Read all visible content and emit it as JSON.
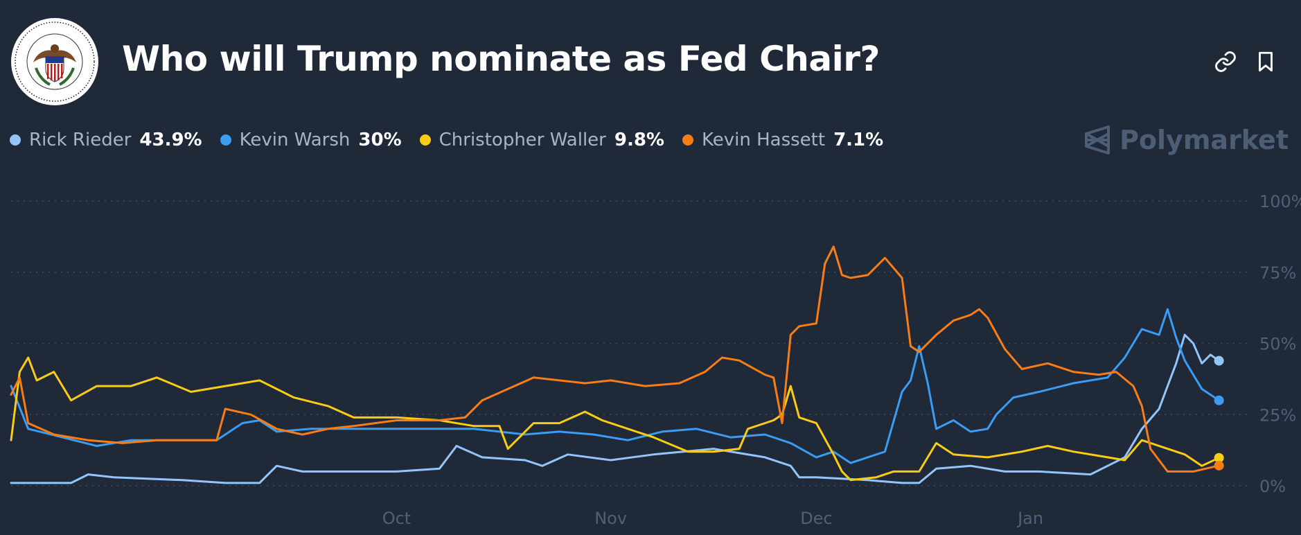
{
  "header": {
    "title": "Who will Trump nominate as Fed Chair?",
    "seal_text": "BOARD OF GOVERNORS OF THE FEDERAL RESERVE SYSTEM",
    "link_icon": "link-icon",
    "bookmark_icon": "bookmark-icon"
  },
  "legend": [
    {
      "name": "Rick Rieder",
      "value": "43.9%",
      "color": "#93c5fd"
    },
    {
      "name": "Kevin Warsh",
      "value": "30%",
      "color": "#3b9cf3"
    },
    {
      "name": "Christopher Waller",
      "value": "9.8%",
      "color": "#facc15"
    },
    {
      "name": "Kevin Hassett",
      "value": "7.1%",
      "color": "#f97d16"
    }
  ],
  "brand": {
    "name": "Polymarket",
    "icon": "polymarket-logo-icon"
  },
  "chart_data": {
    "type": "line",
    "title": "Who will Trump nominate as Fed Chair?",
    "x_domain": [
      0,
      142
    ],
    "ylim": [
      0,
      100
    ],
    "y_ticks": [
      {
        "value": 100,
        "label": "100%"
      },
      {
        "value": 75,
        "label": "75%"
      },
      {
        "value": 50,
        "label": "50%"
      },
      {
        "value": 25,
        "label": "25%"
      },
      {
        "value": 0,
        "label": "0%"
      }
    ],
    "x_ticks": [
      {
        "value": 45,
        "label": "Oct"
      },
      {
        "value": 70,
        "label": "Nov"
      },
      {
        "value": 94,
        "label": "Dec"
      },
      {
        "value": 119,
        "label": "Jan"
      }
    ],
    "grid": true,
    "series": [
      {
        "name": "Rick Rieder",
        "color": "#93c5fd",
        "final": 43.9,
        "points": [
          [
            0,
            1
          ],
          [
            7,
            1
          ],
          [
            9,
            4
          ],
          [
            12,
            3
          ],
          [
            20,
            2
          ],
          [
            25,
            1
          ],
          [
            29,
            1
          ],
          [
            31,
            7
          ],
          [
            34,
            5
          ],
          [
            45,
            5
          ],
          [
            50,
            6
          ],
          [
            52,
            14
          ],
          [
            55,
            10
          ],
          [
            60,
            9
          ],
          [
            62,
            7
          ],
          [
            65,
            11
          ],
          [
            70,
            9
          ],
          [
            75,
            11
          ],
          [
            82,
            13
          ],
          [
            88,
            10
          ],
          [
            91,
            7
          ],
          [
            92,
            3
          ],
          [
            94,
            3
          ],
          [
            100,
            2
          ],
          [
            104,
            1
          ],
          [
            106,
            1
          ],
          [
            108,
            6
          ],
          [
            112,
            7
          ],
          [
            116,
            5
          ],
          [
            120,
            5
          ],
          [
            126,
            4
          ],
          [
            128,
            7
          ],
          [
            130,
            10
          ],
          [
            132,
            20
          ],
          [
            134,
            27
          ],
          [
            135,
            35
          ],
          [
            136,
            43
          ],
          [
            137,
            53
          ],
          [
            138,
            50
          ],
          [
            139,
            43
          ],
          [
            140,
            46
          ],
          [
            141,
            43.9
          ]
        ]
      },
      {
        "name": "Kevin Warsh",
        "color": "#3b9cf3",
        "final": 30,
        "points": [
          [
            0,
            35
          ],
          [
            2,
            20
          ],
          [
            6,
            17
          ],
          [
            10,
            14
          ],
          [
            14,
            16
          ],
          [
            18,
            16
          ],
          [
            24,
            16
          ],
          [
            27,
            22
          ],
          [
            29,
            23
          ],
          [
            31,
            19
          ],
          [
            35,
            20
          ],
          [
            45,
            20
          ],
          [
            54,
            20
          ],
          [
            57,
            19
          ],
          [
            60,
            18
          ],
          [
            64,
            19
          ],
          [
            68,
            18
          ],
          [
            72,
            16
          ],
          [
            76,
            19
          ],
          [
            80,
            20
          ],
          [
            84,
            17
          ],
          [
            88,
            18
          ],
          [
            91,
            15
          ],
          [
            94,
            10
          ],
          [
            96,
            12
          ],
          [
            98,
            8
          ],
          [
            102,
            12
          ],
          [
            104,
            33
          ],
          [
            105,
            37
          ],
          [
            106,
            49
          ],
          [
            107,
            36
          ],
          [
            108,
            20
          ],
          [
            110,
            23
          ],
          [
            112,
            19
          ],
          [
            114,
            20
          ],
          [
            115,
            25
          ],
          [
            117,
            31
          ],
          [
            120,
            33
          ],
          [
            124,
            36
          ],
          [
            128,
            38
          ],
          [
            130,
            45
          ],
          [
            132,
            55
          ],
          [
            134,
            53
          ],
          [
            135,
            62
          ],
          [
            136,
            52
          ],
          [
            137,
            44
          ],
          [
            139,
            34
          ],
          [
            141,
            30
          ]
        ]
      },
      {
        "name": "Christopher Waller",
        "color": "#facc15",
        "final": 9.8,
        "points": [
          [
            0,
            16
          ],
          [
            1,
            40
          ],
          [
            2,
            45
          ],
          [
            3,
            37
          ],
          [
            5,
            40
          ],
          [
            7,
            30
          ],
          [
            10,
            35
          ],
          [
            14,
            35
          ],
          [
            17,
            38
          ],
          [
            21,
            33
          ],
          [
            25,
            35
          ],
          [
            29,
            37
          ],
          [
            33,
            31
          ],
          [
            37,
            28
          ],
          [
            40,
            24
          ],
          [
            45,
            24
          ],
          [
            50,
            23
          ],
          [
            54,
            21
          ],
          [
            57,
            21
          ],
          [
            58,
            13
          ],
          [
            59,
            16
          ],
          [
            61,
            22
          ],
          [
            64,
            22
          ],
          [
            67,
            26
          ],
          [
            69,
            23
          ],
          [
            72,
            20
          ],
          [
            75,
            17
          ],
          [
            79,
            12
          ],
          [
            82,
            12
          ],
          [
            85,
            13
          ],
          [
            86,
            20
          ],
          [
            89,
            23
          ],
          [
            90,
            25
          ],
          [
            91,
            35
          ],
          [
            92,
            24
          ],
          [
            94,
            22
          ],
          [
            96,
            11
          ],
          [
            97,
            5
          ],
          [
            98,
            2
          ],
          [
            101,
            3
          ],
          [
            103,
            5
          ],
          [
            106,
            5
          ],
          [
            108,
            15
          ],
          [
            110,
            11
          ],
          [
            114,
            10
          ],
          [
            118,
            12
          ],
          [
            121,
            14
          ],
          [
            124,
            12
          ],
          [
            128,
            10
          ],
          [
            130,
            9
          ],
          [
            132,
            16
          ],
          [
            135,
            13
          ],
          [
            137,
            11
          ],
          [
            139,
            7
          ],
          [
            141,
            9.8
          ]
        ]
      },
      {
        "name": "Kevin Hassett",
        "color": "#f97d16",
        "final": 7.1,
        "points": [
          [
            0,
            32
          ],
          [
            1,
            38
          ],
          [
            2,
            22
          ],
          [
            5,
            18
          ],
          [
            9,
            16
          ],
          [
            13,
            15
          ],
          [
            17,
            16
          ],
          [
            20,
            16
          ],
          [
            24,
            16
          ],
          [
            25,
            27
          ],
          [
            28,
            25
          ],
          [
            31,
            20
          ],
          [
            34,
            18
          ],
          [
            37,
            20
          ],
          [
            40,
            21
          ],
          [
            45,
            23
          ],
          [
            50,
            23
          ],
          [
            53,
            24
          ],
          [
            55,
            30
          ],
          [
            58,
            34
          ],
          [
            61,
            38
          ],
          [
            64,
            37
          ],
          [
            67,
            36
          ],
          [
            70,
            37
          ],
          [
            74,
            35
          ],
          [
            78,
            36
          ],
          [
            81,
            40
          ],
          [
            83,
            45
          ],
          [
            85,
            44
          ],
          [
            88,
            39
          ],
          [
            89,
            38
          ],
          [
            90,
            22
          ],
          [
            91,
            53
          ],
          [
            92,
            56
          ],
          [
            94,
            57
          ],
          [
            95,
            78
          ],
          [
            96,
            84
          ],
          [
            97,
            74
          ],
          [
            98,
            73
          ],
          [
            100,
            74
          ],
          [
            102,
            80
          ],
          [
            104,
            73
          ],
          [
            105,
            49
          ],
          [
            106,
            47
          ],
          [
            108,
            53
          ],
          [
            110,
            58
          ],
          [
            112,
            60
          ],
          [
            113,
            62
          ],
          [
            114,
            59
          ],
          [
            116,
            48
          ],
          [
            118,
            41
          ],
          [
            121,
            43
          ],
          [
            124,
            40
          ],
          [
            127,
            39
          ],
          [
            129,
            40
          ],
          [
            131,
            35
          ],
          [
            132,
            28
          ],
          [
            133,
            13
          ],
          [
            135,
            5
          ],
          [
            138,
            5
          ],
          [
            141,
            7.1
          ]
        ]
      }
    ]
  }
}
